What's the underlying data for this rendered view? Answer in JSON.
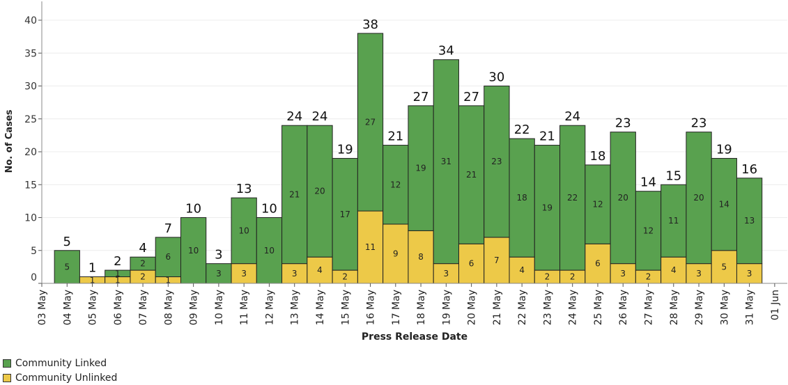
{
  "chart_data": {
    "type": "bar",
    "stacked": true,
    "title": "",
    "xlabel": "Press Release Date",
    "ylabel": "No. of Cases",
    "ylim": [
      0,
      42
    ],
    "yticks": [
      "0",
      "5",
      "10",
      "15",
      "20",
      "25",
      "30",
      "35",
      "40"
    ],
    "categories": [
      "03 May",
      "04 May",
      "05 May",
      "06 May",
      "07 May",
      "08 May",
      "09 May",
      "10 May",
      "11 May",
      "12 May",
      "13 May",
      "14 May",
      "15 May",
      "16 May",
      "17 May",
      "18 May",
      "19 May",
      "20 May",
      "21 May",
      "22 May",
      "23 May",
      "24 May",
      "25 May",
      "26 May",
      "27 May",
      "28 May",
      "29 May",
      "30 May",
      "31 May",
      "01 Jun"
    ],
    "series": [
      {
        "name": "Community Unlinked",
        "color": "#EDC948",
        "values": [
          null,
          0,
          1,
          1,
          2,
          1,
          0,
          0,
          3,
          0,
          3,
          4,
          2,
          11,
          9,
          8,
          3,
          6,
          7,
          4,
          2,
          2,
          6,
          3,
          2,
          4,
          3,
          5,
          3,
          null
        ],
        "labels": [
          "",
          "",
          "1",
          "1",
          "2",
          "1",
          "",
          "",
          "3",
          "",
          "3",
          "4",
          "2",
          "11",
          "9",
          "8",
          "3",
          "6",
          "7",
          "4",
          "2",
          "2",
          "6",
          "3",
          "2",
          "4",
          "3",
          "5",
          "3",
          ""
        ]
      },
      {
        "name": "Community Linked",
        "color": "#59A14F",
        "values": [
          null,
          5,
          0,
          1,
          2,
          6,
          10,
          3,
          10,
          10,
          21,
          20,
          17,
          27,
          12,
          19,
          31,
          21,
          23,
          18,
          19,
          22,
          12,
          20,
          12,
          11,
          20,
          14,
          13,
          null
        ],
        "labels": [
          "",
          "5",
          "",
          "1",
          "2",
          "6",
          "10",
          "3",
          "10",
          "10",
          "21",
          "20",
          "17",
          "27",
          "12",
          "19",
          "31",
          "21",
          "23",
          "18",
          "19",
          "22",
          "12",
          "20",
          "12",
          "11",
          "20",
          "14",
          "13",
          ""
        ]
      }
    ],
    "totals": [
      "",
      "5",
      "1",
      "2",
      "4",
      "7",
      "10",
      "3",
      "13",
      "10",
      "24",
      "24",
      "19",
      "38",
      "21",
      "27",
      "34",
      "27",
      "30",
      "22",
      "21",
      "24",
      "18",
      "23",
      "14",
      "15",
      "23",
      "19",
      "16",
      ""
    ],
    "legend": [
      "Community Linked",
      "Community Unlinked"
    ],
    "legend_position": "bottom-left",
    "grid": true
  }
}
